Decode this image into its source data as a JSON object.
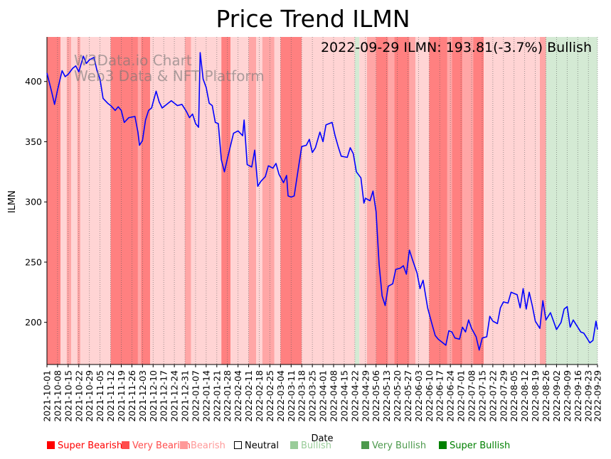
{
  "chart_data": {
    "type": "line",
    "title": "Price Trend ILMN",
    "annotation": "2022-09-29 ILMN: 193.81(-3.7%) Bullish",
    "watermark": [
      "W3Data.io Chart",
      "Web3 Data & NFT Platform"
    ],
    "xlabel": "Date",
    "ylabel": "ILMN",
    "ylim": [
      165,
      437
    ],
    "yticks": [
      200,
      250,
      300,
      350,
      400
    ],
    "xlim": [
      "2021-10-01",
      "2022-09-29"
    ],
    "xticks": [
      "2021-10-01",
      "2021-10-08",
      "2021-10-15",
      "2021-10-22",
      "2021-10-29",
      "2021-11-05",
      "2021-11-12",
      "2021-11-19",
      "2021-11-26",
      "2021-12-03",
      "2021-12-10",
      "2021-12-17",
      "2021-12-24",
      "2021-12-31",
      "2022-01-07",
      "2022-01-14",
      "2022-01-21",
      "2022-01-28",
      "2022-02-04",
      "2022-02-11",
      "2022-02-18",
      "2022-02-25",
      "2022-03-04",
      "2022-03-11",
      "2022-03-18",
      "2022-03-25",
      "2022-04-01",
      "2022-04-08",
      "2022-04-15",
      "2022-04-22",
      "2022-04-29",
      "2022-05-06",
      "2022-05-13",
      "2022-05-20",
      "2022-05-27",
      "2022-06-03",
      "2022-06-10",
      "2022-06-17",
      "2022-06-24",
      "2022-07-01",
      "2022-07-08",
      "2022-07-15",
      "2022-07-22",
      "2022-07-29",
      "2022-08-05",
      "2022-08-12",
      "2022-08-19",
      "2022-08-26",
      "2022-09-02",
      "2022-09-09",
      "2022-09-16",
      "2022-09-23",
      "2022-09-29"
    ],
    "series": [
      {
        "name": "ILMN",
        "color": "#0000ff",
        "points": [
          [
            "2021-10-01",
            407
          ],
          [
            "2021-10-04",
            392
          ],
          [
            "2021-10-06",
            381
          ],
          [
            "2021-10-08",
            393
          ],
          [
            "2021-10-11",
            409
          ],
          [
            "2021-10-13",
            404
          ],
          [
            "2021-10-15",
            406
          ],
          [
            "2021-10-18",
            411
          ],
          [
            "2021-10-20",
            413
          ],
          [
            "2021-10-22",
            408
          ],
          [
            "2021-10-25",
            421
          ],
          [
            "2021-10-27",
            415
          ],
          [
            "2021-10-29",
            418
          ],
          [
            "2021-11-01",
            420
          ],
          [
            "2021-11-03",
            409
          ],
          [
            "2021-11-05",
            402
          ],
          [
            "2021-11-07",
            386
          ],
          [
            "2021-11-10",
            382
          ],
          [
            "2021-11-12",
            380
          ],
          [
            "2021-11-15",
            376
          ],
          [
            "2021-11-17",
            379
          ],
          [
            "2021-11-19",
            376
          ],
          [
            "2021-11-21",
            366
          ],
          [
            "2021-11-24",
            370
          ],
          [
            "2021-11-28",
            371
          ],
          [
            "2021-11-30",
            358
          ],
          [
            "2021-12-01",
            347
          ],
          [
            "2021-12-03",
            351
          ],
          [
            "2021-12-05",
            368
          ],
          [
            "2021-12-07",
            376
          ],
          [
            "2021-12-09",
            378
          ],
          [
            "2021-12-12",
            392
          ],
          [
            "2021-12-14",
            383
          ],
          [
            "2021-12-16",
            378
          ],
          [
            "2021-12-19",
            381
          ],
          [
            "2021-12-22",
            384
          ],
          [
            "2021-12-26",
            380
          ],
          [
            "2021-12-29",
            381
          ],
          [
            "2022-01-01",
            375
          ],
          [
            "2022-01-03",
            370
          ],
          [
            "2022-01-05",
            373
          ],
          [
            "2022-01-07",
            365
          ],
          [
            "2022-01-09",
            362
          ],
          [
            "2022-01-10",
            424
          ],
          [
            "2022-01-12",
            402
          ],
          [
            "2022-01-14",
            395
          ],
          [
            "2022-01-16",
            382
          ],
          [
            "2022-01-18",
            380
          ],
          [
            "2022-01-20",
            366
          ],
          [
            "2022-01-22",
            365
          ],
          [
            "2022-01-24",
            335
          ],
          [
            "2022-01-26",
            325
          ],
          [
            "2022-01-28",
            336
          ],
          [
            "2022-02-01",
            357
          ],
          [
            "2022-02-04",
            359
          ],
          [
            "2022-02-07",
            355
          ],
          [
            "2022-02-08",
            368
          ],
          [
            "2022-02-10",
            331
          ],
          [
            "2022-02-13",
            329
          ],
          [
            "2022-02-15",
            343
          ],
          [
            "2022-02-17",
            313
          ],
          [
            "2022-02-19",
            317
          ],
          [
            "2022-02-22",
            321
          ],
          [
            "2022-02-24",
            330
          ],
          [
            "2022-02-27",
            328
          ],
          [
            "2022-03-01",
            332
          ],
          [
            "2022-03-03",
            323
          ],
          [
            "2022-03-06",
            316
          ],
          [
            "2022-03-08",
            322
          ],
          [
            "2022-03-09",
            305
          ],
          [
            "2022-03-11",
            304
          ],
          [
            "2022-03-13",
            305
          ],
          [
            "2022-03-16",
            330
          ],
          [
            "2022-03-18",
            346
          ],
          [
            "2022-03-21",
            347
          ],
          [
            "2022-03-23",
            352
          ],
          [
            "2022-03-25",
            341
          ],
          [
            "2022-03-27",
            345
          ],
          [
            "2022-03-30",
            358
          ],
          [
            "2022-04-01",
            350
          ],
          [
            "2022-04-03",
            364
          ],
          [
            "2022-04-07",
            366
          ],
          [
            "2022-04-09",
            355
          ],
          [
            "2022-04-11",
            346
          ],
          [
            "2022-04-13",
            338
          ],
          [
            "2022-04-17",
            337
          ],
          [
            "2022-04-19",
            345
          ],
          [
            "2022-04-21",
            340
          ],
          [
            "2022-04-23",
            325
          ],
          [
            "2022-04-26",
            320
          ],
          [
            "2022-04-28",
            299
          ],
          [
            "2022-04-29",
            303
          ],
          [
            "2022-05-02",
            301
          ],
          [
            "2022-05-04",
            309
          ],
          [
            "2022-05-06",
            292
          ],
          [
            "2022-05-08",
            248
          ],
          [
            "2022-05-10",
            222
          ],
          [
            "2022-05-12",
            214
          ],
          [
            "2022-05-14",
            230
          ],
          [
            "2022-05-17",
            232
          ],
          [
            "2022-05-19",
            244
          ],
          [
            "2022-05-22",
            245
          ],
          [
            "2022-05-24",
            247
          ],
          [
            "2022-05-26",
            240
          ],
          [
            "2022-05-28",
            260
          ],
          [
            "2022-05-30",
            252
          ],
          [
            "2022-06-02",
            241
          ],
          [
            "2022-06-04",
            228
          ],
          [
            "2022-06-06",
            235
          ],
          [
            "2022-06-09",
            212
          ],
          [
            "2022-06-12",
            198
          ],
          [
            "2022-06-14",
            189
          ],
          [
            "2022-06-16",
            186
          ],
          [
            "2022-06-18",
            184
          ],
          [
            "2022-06-21",
            181
          ],
          [
            "2022-06-23",
            193
          ],
          [
            "2022-06-25",
            192
          ],
          [
            "2022-06-27",
            187
          ],
          [
            "2022-06-30",
            186
          ],
          [
            "2022-07-02",
            196
          ],
          [
            "2022-07-04",
            192
          ],
          [
            "2022-07-06",
            202
          ],
          [
            "2022-07-08",
            195
          ],
          [
            "2022-07-11",
            188
          ],
          [
            "2022-07-13",
            177
          ],
          [
            "2022-07-15",
            187
          ],
          [
            "2022-07-18",
            188
          ],
          [
            "2022-07-20",
            205
          ],
          [
            "2022-07-22",
            201
          ],
          [
            "2022-07-25",
            199
          ],
          [
            "2022-07-27",
            212
          ],
          [
            "2022-07-29",
            217
          ],
          [
            "2022-08-01",
            216
          ],
          [
            "2022-08-03",
            225
          ],
          [
            "2022-08-05",
            224
          ],
          [
            "2022-08-07",
            223
          ],
          [
            "2022-08-09",
            212
          ],
          [
            "2022-08-11",
            228
          ],
          [
            "2022-08-13",
            211
          ],
          [
            "2022-08-15",
            225
          ],
          [
            "2022-08-17",
            214
          ],
          [
            "2022-08-19",
            201
          ],
          [
            "2022-08-22",
            195
          ],
          [
            "2022-08-24",
            218
          ],
          [
            "2022-08-26",
            202
          ],
          [
            "2022-08-29",
            208
          ],
          [
            "2022-08-31",
            201
          ],
          [
            "2022-09-02",
            194
          ],
          [
            "2022-09-05",
            200
          ],
          [
            "2022-09-07",
            211
          ],
          [
            "2022-09-09",
            213
          ],
          [
            "2022-09-11",
            196
          ],
          [
            "2022-09-13",
            202
          ],
          [
            "2022-09-15",
            198
          ],
          [
            "2022-09-18",
            192
          ],
          [
            "2022-09-20",
            191
          ],
          [
            "2022-09-22",
            187
          ],
          [
            "2022-09-24",
            183
          ],
          [
            "2022-09-26",
            185
          ],
          [
            "2022-09-28",
            201
          ],
          [
            "2022-09-29",
            194
          ]
        ]
      }
    ],
    "sentiment_bands": [
      [
        "2021-10-01",
        "2021-10-10",
        "Super Bearish"
      ],
      [
        "2021-10-10",
        "2021-10-14",
        "Bearish"
      ],
      [
        "2021-10-14",
        "2021-10-17",
        "Very Bearish"
      ],
      [
        "2021-10-17",
        "2021-10-21",
        "Bearish"
      ],
      [
        "2021-10-21",
        "2021-10-23",
        "Very Bearish"
      ],
      [
        "2021-10-23",
        "2021-11-12",
        "Bearish"
      ],
      [
        "2021-11-12",
        "2021-11-30",
        "Super Bearish"
      ],
      [
        "2021-11-30",
        "2021-12-02",
        "Very Bearish"
      ],
      [
        "2021-12-02",
        "2021-12-08",
        "Super Bearish"
      ],
      [
        "2021-12-08",
        "2021-12-31",
        "Bearish"
      ],
      [
        "2021-12-31",
        "2022-01-04",
        "Very Bearish"
      ],
      [
        "2022-01-04",
        "2022-01-24",
        "Bearish"
      ],
      [
        "2022-01-24",
        "2022-01-30",
        "Super Bearish"
      ],
      [
        "2022-01-30",
        "2022-02-11",
        "Bearish"
      ],
      [
        "2022-02-11",
        "2022-02-16",
        "Very Bearish"
      ],
      [
        "2022-02-16",
        "2022-02-20",
        "Bearish"
      ],
      [
        "2022-02-20",
        "2022-02-28",
        "Very Bearish"
      ],
      [
        "2022-02-28",
        "2022-03-04",
        "Bearish"
      ],
      [
        "2022-03-04",
        "2022-03-18",
        "Super Bearish"
      ],
      [
        "2022-03-18",
        "2022-04-22",
        "Bearish"
      ],
      [
        "2022-04-22",
        "2022-04-25",
        "Bullish"
      ],
      [
        "2022-04-25",
        "2022-04-30",
        "Bearish"
      ],
      [
        "2022-04-30",
        "2022-05-06",
        "Very Bearish"
      ],
      [
        "2022-05-06",
        "2022-05-14",
        "Super Bearish"
      ],
      [
        "2022-05-14",
        "2022-05-18",
        "Very Bearish"
      ],
      [
        "2022-05-18",
        "2022-05-28",
        "Super Bearish"
      ],
      [
        "2022-05-28",
        "2022-06-01",
        "Very Bearish"
      ],
      [
        "2022-06-01",
        "2022-06-10",
        "Bearish"
      ],
      [
        "2022-06-10",
        "2022-06-22",
        "Super Bearish"
      ],
      [
        "2022-06-22",
        "2022-06-25",
        "Very Bearish"
      ],
      [
        "2022-06-25",
        "2022-07-02",
        "Super Bearish"
      ],
      [
        "2022-07-02",
        "2022-07-09",
        "Very Bearish"
      ],
      [
        "2022-07-09",
        "2022-07-16",
        "Super Bearish"
      ],
      [
        "2022-07-16",
        "2022-08-22",
        "Bearish"
      ],
      [
        "2022-08-22",
        "2022-08-26",
        "Very Bearish"
      ],
      [
        "2022-08-26",
        "2022-09-29",
        "Bullish"
      ]
    ],
    "legend": [
      {
        "label": "Super Bearish",
        "color": "#ff0000"
      },
      {
        "label": "Very Bearish",
        "color": "#ff4c4c"
      },
      {
        "label": "Bearish",
        "color": "#ff9999"
      },
      {
        "label": "Neutral",
        "color": "#000000"
      },
      {
        "label": "Bullish",
        "color": "#99cc99"
      },
      {
        "label": "Very Bullish",
        "color": "#4c994c"
      },
      {
        "label": "Super Bullish",
        "color": "#008000"
      }
    ]
  }
}
